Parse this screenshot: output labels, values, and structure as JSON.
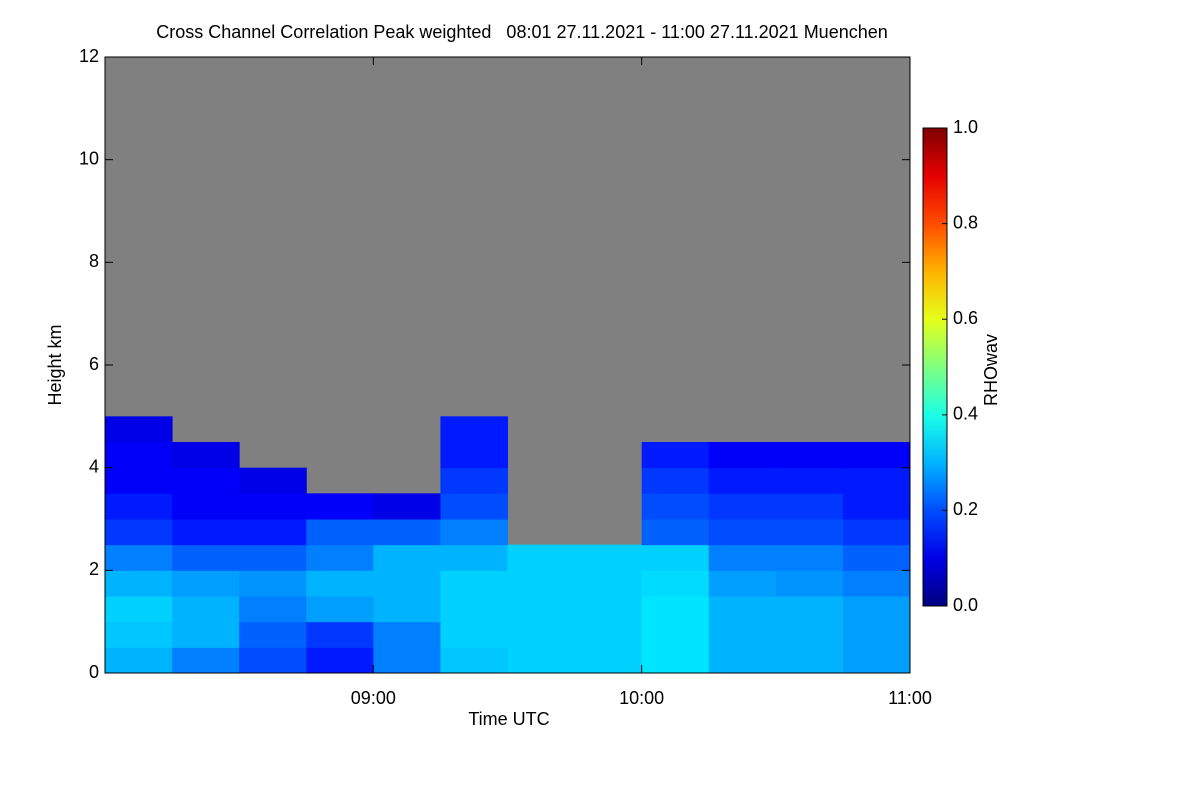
{
  "chart_data": {
    "type": "heatmap",
    "title": "Cross Channel Correlation Peak weighted   08:01 27.11.2021 - 11:00 27.11.2021 Muenchen",
    "x_label": "Time UTC",
    "y_label": "Height km",
    "colorbar_label": "RHOwav",
    "xlim": [
      8,
      11
    ],
    "xticks": [
      {
        "value": 9,
        "label": "09:00"
      },
      {
        "value": 10,
        "label": "10:00"
      },
      {
        "value": 11,
        "label": "11:00"
      }
    ],
    "ylim": [
      0,
      12
    ],
    "yticks": [
      0,
      2,
      4,
      6,
      8,
      10,
      12
    ],
    "zlim": [
      0,
      1
    ],
    "zticks": [
      {
        "value": 0,
        "label": "0.0"
      },
      {
        "value": 0.2,
        "label": "0.2"
      },
      {
        "value": 0.4,
        "label": "0.4"
      },
      {
        "value": 0.6,
        "label": "0.6"
      },
      {
        "value": 0.8,
        "label": "0.8"
      },
      {
        "value": 1,
        "label": "1.0"
      }
    ],
    "colormap": "jet",
    "nodata_color": "#808080",
    "xbins": [
      8,
      8.25,
      8.5,
      8.75,
      9,
      9.25,
      9.5,
      9.75,
      10,
      10.25,
      10.5,
      10.75,
      11
    ],
    "ybins": [
      0,
      0.5,
      1,
      1.5,
      2,
      2.5,
      3,
      3.5,
      4,
      4.5,
      5
    ],
    "z": [
      [
        0.3,
        0.25,
        0.2,
        0.15,
        0.25,
        0.32,
        0.33,
        0.33,
        0.35,
        0.3,
        0.3,
        0.28
      ],
      [
        0.32,
        0.3,
        0.22,
        0.18,
        0.25,
        0.33,
        0.33,
        0.33,
        0.35,
        0.3,
        0.3,
        0.28
      ],
      [
        0.33,
        0.3,
        0.25,
        0.28,
        0.3,
        0.33,
        0.33,
        0.33,
        0.35,
        0.3,
        0.3,
        0.28
      ],
      [
        0.3,
        0.28,
        0.27,
        0.3,
        0.3,
        0.33,
        0.33,
        0.33,
        0.34,
        0.28,
        0.27,
        0.25
      ],
      [
        0.25,
        0.22,
        0.22,
        0.25,
        0.3,
        0.3,
        0.33,
        0.33,
        0.33,
        0.25,
        0.25,
        0.22
      ],
      [
        0.18,
        0.15,
        0.15,
        0.22,
        0.22,
        0.25,
        null,
        null,
        0.22,
        0.2,
        0.2,
        0.18
      ],
      [
        0.15,
        0.12,
        0.12,
        0.12,
        0.1,
        0.2,
        null,
        null,
        0.2,
        0.18,
        0.18,
        0.15
      ],
      [
        0.12,
        0.12,
        0.1,
        null,
        null,
        0.18,
        null,
        null,
        0.18,
        0.15,
        0.15,
        0.15
      ],
      [
        0.12,
        0.1,
        null,
        null,
        null,
        0.15,
        null,
        null,
        0.15,
        0.12,
        0.12,
        0.12
      ],
      [
        0.1,
        null,
        null,
        null,
        null,
        0.15,
        null,
        null,
        null,
        null,
        null,
        null
      ]
    ]
  }
}
